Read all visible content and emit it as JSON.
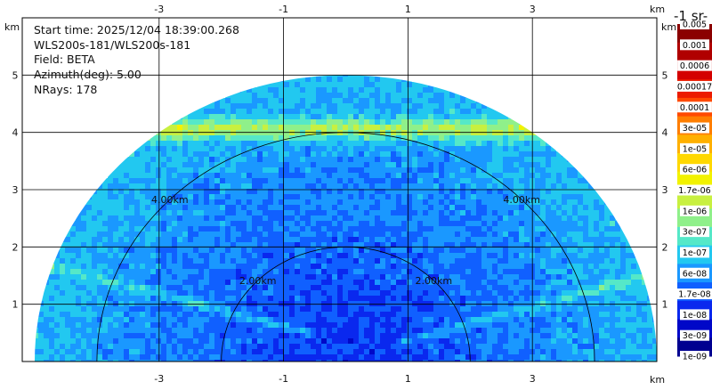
{
  "header": {
    "lines": [
      "Start time: 2025/12/04 18:39:00.268",
      "WLS200s-181/WLS200s-181",
      "Field: BETA",
      "Azimuth(deg): 5.00",
      "NRays: 178"
    ]
  },
  "chart_data": {
    "type": "heatmap",
    "subtype": "RHI polar scan",
    "x_unit": "km",
    "y_unit": "km",
    "x_ticks": [
      "-3",
      "-1",
      "1",
      "3"
    ],
    "x_tick_values": [
      -3,
      -1,
      1,
      3
    ],
    "y_ticks": [
      "1",
      "2",
      "3",
      "4",
      "5"
    ],
    "y_tick_values": [
      1,
      2,
      3,
      4,
      5
    ],
    "xlim": [
      -5.2,
      5.0
    ],
    "ylim": [
      0,
      6.0
    ],
    "max_range_km": 5.0,
    "range_rings": [
      {
        "value": 2.0,
        "label": "2.00km"
      },
      {
        "value": 4.0,
        "label": "4.00km"
      }
    ],
    "grid": true,
    "colorbar": {
      "title": "-1 sr-",
      "scale": "log",
      "labels": [
        "0.005",
        "0.001",
        "0.0006",
        "0.00017",
        "0.0001",
        "3e-05",
        "1e-05",
        "6e-06",
        "1.7e-06",
        "1e-06",
        "3e-07",
        "1e-07",
        "6e-08",
        "1.7e-08",
        "1e-08",
        "3e-09",
        "1e-09"
      ],
      "colors": [
        "#8b0000",
        "#b00000",
        "#d40000",
        "#ec1c00",
        "#ff4a00",
        "#ff7e00",
        "#ffb000",
        "#ffd800",
        "#f2f200",
        "#c8f040",
        "#8ff08a",
        "#55e8c8",
        "#22c8f0",
        "#1a98ff",
        "#1060ff",
        "#0a28ee",
        "#0008c8",
        "#000090"
      ]
    }
  }
}
